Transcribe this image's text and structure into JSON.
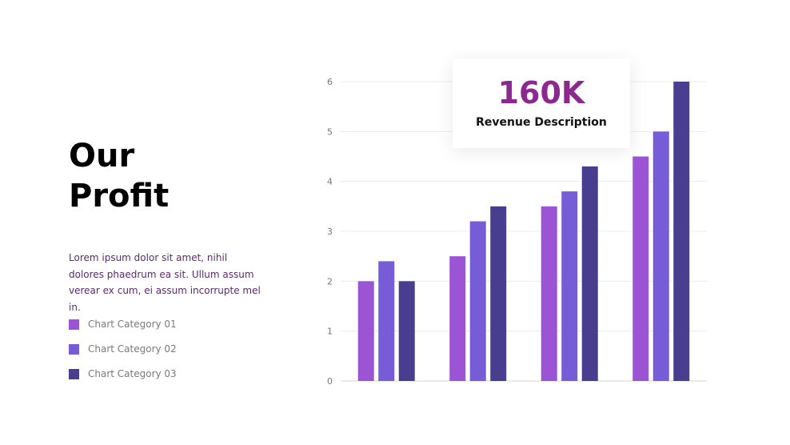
{
  "heading": {
    "line1": "Our",
    "line2": "Profit"
  },
  "description": "Lorem ipsum dolor sit amet, nihil dolores phaedrum ea sit. Ullum assum verear ex cum, ei assum incorrupte mel in.",
  "callout": {
    "value": "160K",
    "label": "Revenue Description"
  },
  "chart_data": {
    "type": "bar",
    "categories": [
      "",
      "",
      "",
      ""
    ],
    "ylim": [
      0,
      6
    ],
    "yticks": [
      0,
      1,
      2,
      3,
      4,
      5,
      6
    ],
    "grid": true,
    "legend_position": "left",
    "series": [
      {
        "name": "Chart Category 01",
        "color": "#9b55d4",
        "values": [
          2.0,
          2.5,
          3.5,
          4.5
        ]
      },
      {
        "name": "Chart Category 02",
        "color": "#765cd6",
        "values": [
          2.4,
          3.2,
          3.8,
          5.0
        ]
      },
      {
        "name": "Chart Category 03",
        "color": "#483d8f",
        "values": [
          2.0,
          3.5,
          4.3,
          6.0
        ]
      }
    ]
  }
}
